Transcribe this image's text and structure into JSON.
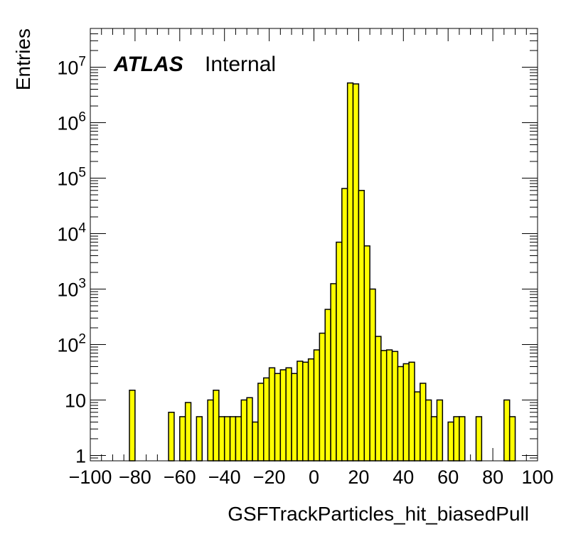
{
  "chart_data": {
    "type": "histogram",
    "xlabel": "GSFTrackParticles_hit_biasedPull",
    "ylabel": "Entries",
    "xlim": [
      -100,
      100
    ],
    "ylim": [
      0.8,
      50000000
    ],
    "yscale": "log",
    "bin_width": 2.5,
    "fill_color": "#ffff00",
    "line_color": "#000000",
    "x_ticks": [
      -100,
      -80,
      -60,
      -40,
      -20,
      0,
      20,
      40,
      60,
      80,
      100
    ],
    "x_tick_labels": [
      "−100",
      "−80",
      "−60",
      "−40",
      "−20",
      "0",
      "20",
      "40",
      "60",
      "80",
      "100"
    ],
    "y_ticks": [
      {
        "value": 1,
        "base": "1",
        "exp": ""
      },
      {
        "value": 10,
        "base": "10",
        "exp": ""
      },
      {
        "value": 100,
        "base": "10",
        "exp": "2"
      },
      {
        "value": 1000,
        "base": "10",
        "exp": "3"
      },
      {
        "value": 10000,
        "base": "10",
        "exp": "4"
      },
      {
        "value": 100000,
        "base": "10",
        "exp": "5"
      },
      {
        "value": 1000000,
        "base": "10",
        "exp": "6"
      },
      {
        "value": 10000000,
        "base": "10",
        "exp": "7"
      }
    ],
    "annotations": {
      "atlas": "ATLAS",
      "status": "Internal"
    },
    "bins": [
      {
        "x": -82.5,
        "y": 15
      },
      {
        "x": -65,
        "y": 6
      },
      {
        "x": -60,
        "y": 5
      },
      {
        "x": -57.5,
        "y": 9
      },
      {
        "x": -52.5,
        "y": 5
      },
      {
        "x": -47.5,
        "y": 10
      },
      {
        "x": -45,
        "y": 15
      },
      {
        "x": -42.5,
        "y": 5
      },
      {
        "x": -40,
        "y": 5
      },
      {
        "x": -37.5,
        "y": 5
      },
      {
        "x": -35,
        "y": 5
      },
      {
        "x": -32.5,
        "y": 10
      },
      {
        "x": -30,
        "y": 11
      },
      {
        "x": -27.5,
        "y": 4
      },
      {
        "x": -25,
        "y": 20
      },
      {
        "x": -22.5,
        "y": 25
      },
      {
        "x": -20,
        "y": 38
      },
      {
        "x": -17.5,
        "y": 30
      },
      {
        "x": -15,
        "y": 35
      },
      {
        "x": -12.5,
        "y": 38
      },
      {
        "x": -10,
        "y": 30
      },
      {
        "x": -7.5,
        "y": 50
      },
      {
        "x": -5,
        "y": 48
      },
      {
        "x": -2.5,
        "y": 55
      },
      {
        "x": 0,
        "y": 80
      },
      {
        "x": 2.5,
        "y": 160
      },
      {
        "x": 5,
        "y": 430
      },
      {
        "x": 7.5,
        "y": 1250
      },
      {
        "x": 10,
        "y": 7000
      },
      {
        "x": 12.5,
        "y": 65000
      },
      {
        "x": 15,
        "y": 5200000
      },
      {
        "x": 17.5,
        "y": 5000000
      },
      {
        "x": 20,
        "y": 60000
      },
      {
        "x": 22.5,
        "y": 6000
      },
      {
        "x": 25,
        "y": 1000
      },
      {
        "x": 27.5,
        "y": 140
      },
      {
        "x": 30,
        "y": 78
      },
      {
        "x": 32.5,
        "y": 80
      },
      {
        "x": 35,
        "y": 75
      },
      {
        "x": 37.5,
        "y": 40
      },
      {
        "x": 40,
        "y": 45
      },
      {
        "x": 42.5,
        "y": 48
      },
      {
        "x": 45,
        "y": 14
      },
      {
        "x": 47.5,
        "y": 20
      },
      {
        "x": 50,
        "y": 10
      },
      {
        "x": 52.5,
        "y": 5
      },
      {
        "x": 55,
        "y": 10
      },
      {
        "x": 60,
        "y": 4
      },
      {
        "x": 62.5,
        "y": 5
      },
      {
        "x": 65,
        "y": 5
      },
      {
        "x": 72.5,
        "y": 5
      },
      {
        "x": 85,
        "y": 10
      },
      {
        "x": 87.5,
        "y": 5
      }
    ]
  }
}
